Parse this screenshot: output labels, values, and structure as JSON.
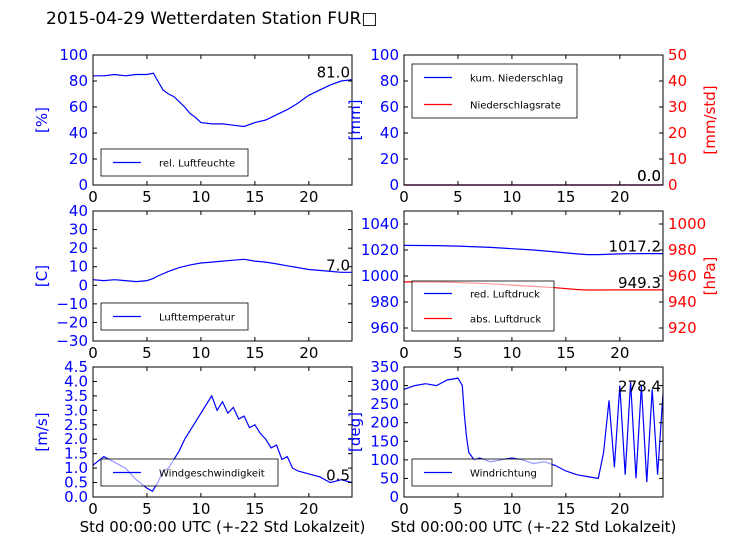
{
  "title": "2015-04-29 Wetterdaten Station FUR□",
  "colors": {
    "blue": "#0000ff",
    "red": "#ff0000",
    "black": "#000000"
  },
  "chart_data": [
    {
      "type": "line",
      "ylabel": "[%]",
      "xlim": [
        0,
        24
      ],
      "ylim": [
        0,
        100
      ],
      "xticks": [
        "0",
        "5",
        "10",
        "15",
        "20"
      ],
      "yticks": [
        "0",
        "20",
        "40",
        "60",
        "80",
        "100"
      ],
      "last_value": "81.0",
      "legend": [
        "rel. Luftfeuchte"
      ],
      "legend_position": "lower-left",
      "series": [
        {
          "name": "rel. Luftfeuchte",
          "axis": "left",
          "color": "#0000ff",
          "x": [
            0,
            1,
            2,
            3,
            4,
            5,
            5.6,
            6,
            6.5,
            7,
            7.5,
            8,
            8.5,
            9,
            9.5,
            10,
            11,
            12,
            13,
            14,
            15,
            16,
            17,
            18,
            19,
            20,
            21,
            22,
            23,
            24
          ],
          "y": [
            84,
            84,
            85,
            84,
            85,
            85,
            86,
            80,
            73,
            70,
            68,
            64,
            60,
            55,
            52,
            48,
            47,
            47,
            46,
            45,
            48,
            50,
            54,
            58,
            63,
            69,
            73,
            77,
            80,
            81
          ]
        }
      ]
    },
    {
      "type": "line",
      "ylabel": "[mm]",
      "ylabel_right": "[mm/std]",
      "xlim": [
        0,
        24
      ],
      "ylim": [
        0,
        100
      ],
      "ylim_right": [
        0,
        50
      ],
      "xticks": [
        "0",
        "5",
        "10",
        "15",
        "20"
      ],
      "yticks": [
        "0",
        "20",
        "40",
        "60",
        "80",
        "100"
      ],
      "yticks_right": [
        "0",
        "10",
        "20",
        "30",
        "40",
        "50"
      ],
      "last_value": "0.0",
      "last_value_right": "0.0",
      "legend": [
        "kum. Niederschlag",
        "Niederschlagsrate"
      ],
      "legend_position": "upper-left",
      "series": [
        {
          "name": "kum. Niederschlag",
          "axis": "left",
          "color": "#0000ff",
          "x": [
            0,
            24
          ],
          "y": [
            0,
            0
          ]
        },
        {
          "name": "Niederschlagsrate",
          "axis": "right",
          "color": "#ff0000",
          "x": [
            0,
            24
          ],
          "y": [
            0,
            0
          ]
        }
      ]
    },
    {
      "type": "line",
      "ylabel": "[C]",
      "xlim": [
        0,
        24
      ],
      "ylim": [
        -30,
        40
      ],
      "xticks": [
        "0",
        "5",
        "10",
        "15",
        "20"
      ],
      "yticks": [
        "−30",
        "−20",
        "−10",
        "0",
        "10",
        "20",
        "30",
        "40"
      ],
      "last_value": "7.0",
      "legend": [
        "Lufttemperatur"
      ],
      "legend_position": "lower-left",
      "series": [
        {
          "name": "Lufttemperatur",
          "axis": "left",
          "color": "#0000ff",
          "x": [
            0,
            1,
            2,
            3,
            4,
            5,
            5.5,
            6,
            7,
            8,
            9,
            10,
            11,
            12,
            13,
            14,
            15,
            16,
            17,
            18,
            19,
            20,
            21,
            22,
            23,
            24
          ],
          "y": [
            3,
            2.5,
            3,
            2.5,
            2,
            2.5,
            3.5,
            5,
            7.5,
            9.5,
            11,
            12,
            12.5,
            13,
            13.5,
            14,
            13,
            12.5,
            11.5,
            10.5,
            9.5,
            8.5,
            8,
            7.5,
            7,
            7
          ]
        }
      ]
    },
    {
      "type": "line",
      "ylabel_right": "[hPa]",
      "xlim": [
        0,
        24
      ],
      "ylim": [
        950,
        1050
      ],
      "ylim_right": [
        910,
        1010
      ],
      "xticks": [
        "0",
        "5",
        "10",
        "15",
        "20"
      ],
      "yticks": [
        "960",
        "980",
        "1000",
        "1020",
        "1040"
      ],
      "yticks_right": [
        "920",
        "940",
        "960",
        "980",
        "1000"
      ],
      "last_value": "1017.2",
      "last_value_right": "949.3",
      "legend": [
        "red. Luftdruck",
        "abs. Luftdruck"
      ],
      "legend_position": "lower-left",
      "series": [
        {
          "name": "red. Luftdruck",
          "axis": "left",
          "color": "#0000ff",
          "x": [
            0,
            3,
            5,
            8,
            10,
            12,
            14,
            16,
            17,
            18,
            20,
            22,
            24
          ],
          "y": [
            1023.5,
            1023.4,
            1023,
            1022,
            1021,
            1020,
            1018.5,
            1017,
            1016.5,
            1016.5,
            1017,
            1017.2,
            1017.2
          ]
        },
        {
          "name": "abs. Luftdruck",
          "axis": "right",
          "color": "#ff0000",
          "x": [
            0,
            3,
            5,
            8,
            10,
            12,
            14,
            16,
            17,
            18,
            20,
            22,
            24
          ],
          "y": [
            955.5,
            955.4,
            955,
            954,
            953,
            952,
            951,
            949.6,
            949.2,
            949.2,
            949.3,
            949.3,
            949.3
          ]
        }
      ]
    },
    {
      "type": "line",
      "ylabel": "[m/s]",
      "xlim": [
        0,
        24
      ],
      "ylim": [
        0,
        4.5
      ],
      "xticks": [
        "0",
        "5",
        "10",
        "15",
        "20"
      ],
      "yticks": [
        "0.0",
        "0.5",
        "1.0",
        "1.5",
        "2.0",
        "2.5",
        "3.0",
        "3.5",
        "4.0",
        "4.5"
      ],
      "last_value": "0.5",
      "legend": [
        "Windgeschwindigkeit"
      ],
      "legend_position": "lower-left",
      "series": [
        {
          "name": "Windgeschwindigkeit",
          "axis": "left",
          "color": "#0000ff",
          "x": [
            0,
            1,
            2,
            3,
            4,
            5,
            5.5,
            6,
            6.5,
            7,
            7.5,
            8,
            8.5,
            9,
            9.5,
            10,
            10.5,
            11,
            11.5,
            12,
            12.5,
            13,
            13.5,
            14,
            14.5,
            15,
            15.5,
            16,
            16.5,
            17,
            17.5,
            18,
            18.5,
            19,
            20,
            21,
            22,
            23,
            24
          ],
          "y": [
            1.1,
            1.4,
            1.2,
            1.0,
            0.6,
            0.3,
            0.2,
            0.5,
            0.9,
            1.0,
            1.3,
            1.6,
            2.0,
            2.3,
            2.6,
            2.9,
            3.2,
            3.5,
            3.0,
            3.3,
            2.9,
            3.1,
            2.7,
            2.8,
            2.4,
            2.5,
            2.2,
            2.0,
            1.7,
            1.8,
            1.3,
            1.4,
            1.0,
            0.9,
            0.8,
            0.7,
            0.5,
            0.6,
            0.5
          ]
        }
      ]
    },
    {
      "type": "line",
      "ylabel": "[deg]",
      "xlim": [
        0,
        24
      ],
      "ylim": [
        0,
        350
      ],
      "xticks": [
        "0",
        "5",
        "10",
        "15",
        "20"
      ],
      "yticks": [
        "0",
        "50",
        "100",
        "150",
        "200",
        "250",
        "300",
        "350"
      ],
      "last_value": "278.4",
      "legend": [
        "Windrichtung"
      ],
      "legend_position": "lower-left",
      "series": [
        {
          "name": "Windrichtung",
          "axis": "left",
          "color": "#0000ff",
          "x": [
            0,
            1,
            2,
            3,
            4,
            5,
            5.4,
            5.6,
            5.8,
            6,
            6.5,
            7,
            8,
            9,
            10,
            11,
            12,
            13,
            14,
            15,
            16,
            17,
            18,
            18.5,
            19,
            19.5,
            20,
            20.5,
            21,
            21.5,
            22,
            22.5,
            23,
            23.5,
            24
          ],
          "y": [
            290,
            300,
            305,
            300,
            315,
            320,
            300,
            220,
            160,
            120,
            100,
            105,
            95,
            100,
            105,
            100,
            90,
            95,
            85,
            70,
            60,
            55,
            50,
            120,
            260,
            80,
            300,
            60,
            310,
            50,
            300,
            40,
            290,
            60,
            278
          ]
        }
      ]
    }
  ],
  "xlabels": [
    "Std 00:00:00 UTC (+-22 Std Lokalzeit)",
    "Std 00:00:00 UTC (+-22 Std Lokalzeit)"
  ]
}
